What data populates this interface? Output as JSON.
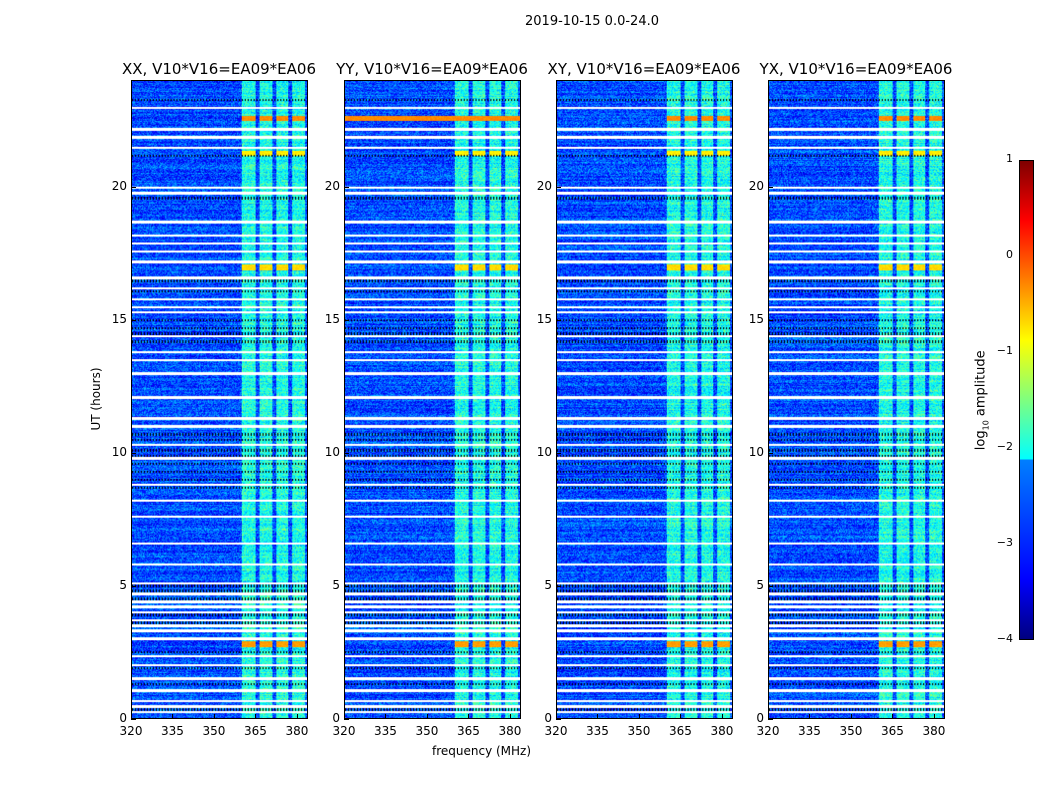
{
  "suptitle": "2019-10-15 0.0-24.0",
  "chart_data": {
    "type": "heatmap",
    "panels": [
      {
        "title": "XX, V10*V16=EA09*EA06"
      },
      {
        "title": "YY, V10*V16=EA09*EA06"
      },
      {
        "title": "XY, V10*V16=EA09*EA06"
      },
      {
        "title": "YX, V10*V16=EA09*EA06"
      }
    ],
    "xlabel": "frequency (MHz)",
    "ylabel": "UT (hours)",
    "xlim": [
      320,
      384
    ],
    "ylim": [
      0,
      24
    ],
    "xticks": [
      "320",
      "335",
      "350",
      "365",
      "380"
    ],
    "xtick_values": [
      320,
      335,
      350,
      365,
      380
    ],
    "yticks": [
      "0",
      "5",
      "10",
      "15",
      "20"
    ],
    "ytick_values": [
      0,
      5,
      10,
      15,
      20
    ],
    "colormap": "jet",
    "colorbar": {
      "label_main": "log",
      "label_sub": "10",
      "label_tail": " amplitude",
      "range": [
        -4,
        1
      ],
      "ticks": [
        "1",
        "0",
        "−1",
        "−2",
        "−3",
        "−4"
      ],
      "tick_values": [
        1,
        0,
        -1,
        -2,
        -3,
        -4
      ]
    },
    "background_level": -3.0,
    "rfi_subbands_mhz": [
      [
        360,
        365
      ],
      [
        366.5,
        371
      ],
      [
        372.5,
        377
      ],
      [
        378.5,
        383
      ]
    ],
    "rfi_subband_level": -2.0,
    "bursts": [
      {
        "time_h": 2.8,
        "level": -0.4,
        "subbands_only": true
      },
      {
        "time_h": 17.0,
        "level": -0.7,
        "subbands_only": true
      },
      {
        "time_h": 21.3,
        "level": -0.8,
        "subbands_only": true
      },
      {
        "time_h": 22.6,
        "level": -0.3,
        "subbands_only": true,
        "YY_full_band": true
      }
    ],
    "flagged_white_rows_h": [
      0.25,
      0.45,
      0.65,
      1.05,
      1.5,
      2.0,
      2.35,
      3.0,
      3.3,
      3.5,
      3.7,
      4.0,
      4.2,
      4.4,
      4.7,
      5.1,
      5.8,
      6.6,
      7.6,
      8.2,
      8.8,
      9.8,
      10.3,
      11.0,
      11.3,
      12.1,
      13.0,
      13.5,
      13.8,
      14.4,
      15.3,
      15.5,
      15.8,
      16.2,
      16.6,
      17.2,
      17.6,
      17.9,
      18.2,
      18.7,
      19.8,
      20.0,
      21.5,
      21.9,
      22.2,
      23.0
    ],
    "dark_rows_h": [
      0.35,
      1.3,
      1.9,
      2.5,
      3.6,
      3.9,
      4.5,
      4.8,
      5.0,
      8.7,
      9.0,
      9.3,
      9.6,
      9.9,
      10.1,
      10.5,
      10.7,
      14.2,
      14.5,
      14.7,
      15.0,
      16.1,
      16.5,
      19.6,
      21.2,
      23.3
    ]
  }
}
